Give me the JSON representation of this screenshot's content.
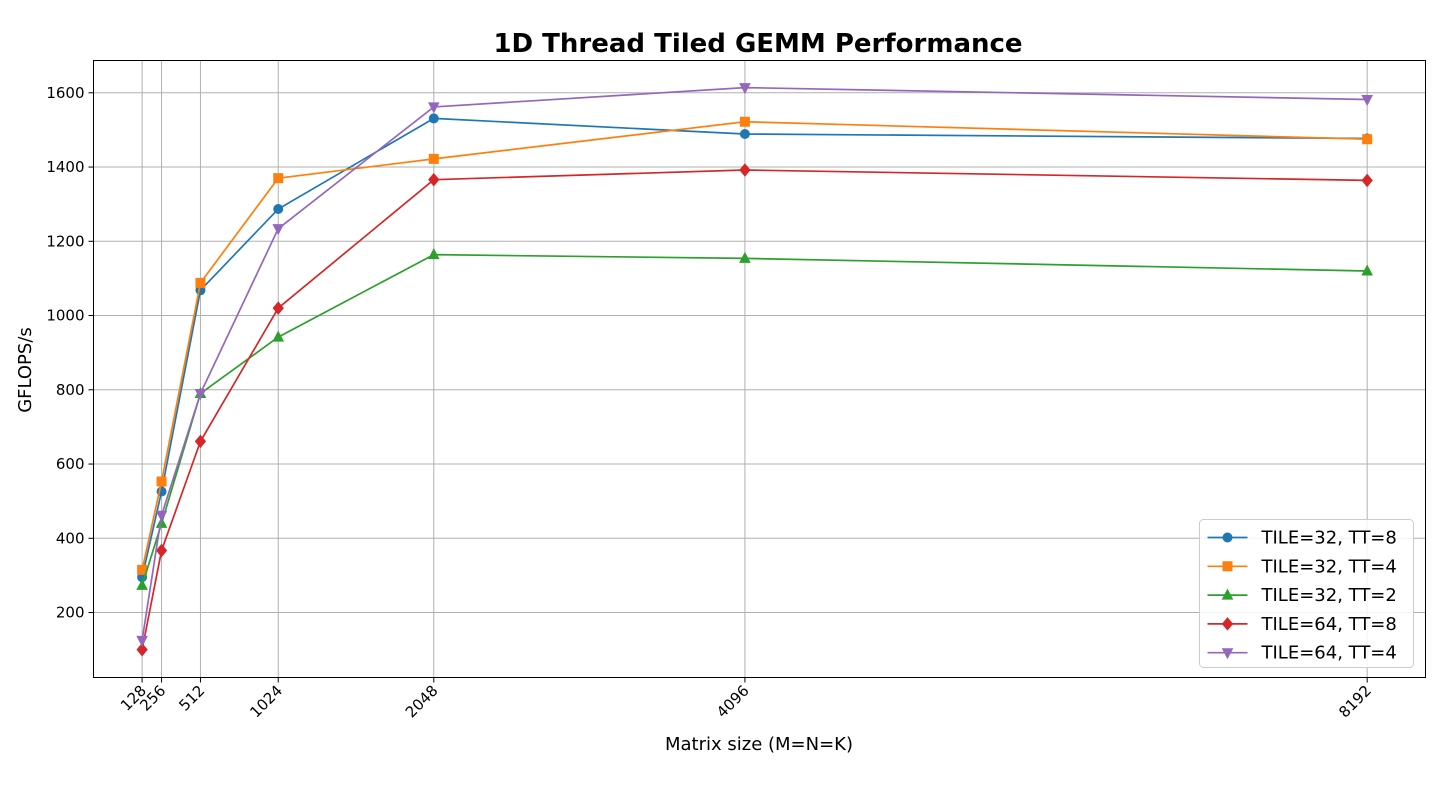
{
  "chart_data": {
    "type": "line",
    "title": "1D Thread Tiled GEMM Performance",
    "xlabel": "Matrix size (M=N=K)",
    "ylabel": "GFLOPS/s",
    "x": [
      128,
      256,
      512,
      1024,
      2048,
      4096,
      8192
    ],
    "x_tick_labels": [
      "128",
      "256",
      "512",
      "1024",
      "2048",
      "4096",
      "8192"
    ],
    "xlim": [
      -192,
      8576
    ],
    "ylim": [
      25,
      1687
    ],
    "y_ticks": [
      200,
      400,
      600,
      800,
      1000,
      1200,
      1400,
      1600
    ],
    "grid": true,
    "legend_position": "lower-right",
    "series": [
      {
        "name": "TILE=32, TT=8",
        "color": "#1f77b4",
        "marker": "circle",
        "values": [
          295,
          526,
          1068,
          1287,
          1531,
          1489,
          1477
        ]
      },
      {
        "name": "TILE=32, TT=4",
        "color": "#ff7f0e",
        "marker": "square",
        "values": [
          315,
          553,
          1088,
          1370,
          1422,
          1522,
          1475
        ]
      },
      {
        "name": "TILE=32, TT=2",
        "color": "#2ca02c",
        "marker": "triangle-up",
        "values": [
          273,
          440,
          790,
          942,
          1164,
          1154,
          1120
        ]
      },
      {
        "name": "TILE=64, TT=8",
        "color": "#d62728",
        "marker": "diamond",
        "values": [
          100,
          367,
          661,
          1020,
          1366,
          1392,
          1364
        ]
      },
      {
        "name": "TILE=64, TT=4",
        "color": "#9467bd",
        "marker": "triangle-down",
        "values": [
          125,
          462,
          790,
          1234,
          1562,
          1614,
          1582
        ]
      }
    ]
  }
}
